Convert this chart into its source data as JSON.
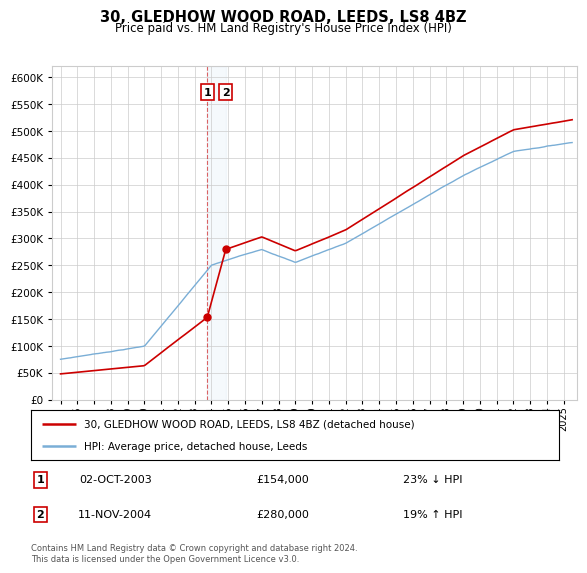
{
  "title": "30, GLEDHOW WOOD ROAD, LEEDS, LS8 4BZ",
  "subtitle": "Price paid vs. HM Land Registry's House Price Index (HPI)",
  "legend_line1": "30, GLEDHOW WOOD ROAD, LEEDS, LS8 4BZ (detached house)",
  "legend_line2": "HPI: Average price, detached house, Leeds",
  "sale1_date": "02-OCT-2003",
  "sale1_price": "£154,000",
  "sale1_hpi": "23% ↓ HPI",
  "sale1_year": 2003.75,
  "sale1_value": 154000,
  "sale2_date": "11-NOV-2004",
  "sale2_price": "£280,000",
  "sale2_hpi": "19% ↑ HPI",
  "sale2_year": 2004.85,
  "sale2_value": 280000,
  "red_color": "#cc0000",
  "blue_color": "#7aaed6",
  "background_color": "#ffffff",
  "grid_color": "#cccccc",
  "footer": "Contains HM Land Registry data © Crown copyright and database right 2024.\nThis data is licensed under the Open Government Licence v3.0.",
  "ylim": [
    0,
    620000
  ],
  "yticks": [
    0,
    50000,
    100000,
    150000,
    200000,
    250000,
    300000,
    350000,
    400000,
    450000,
    500000,
    550000,
    600000
  ],
  "xmin": 1994.5,
  "xmax": 2025.8
}
